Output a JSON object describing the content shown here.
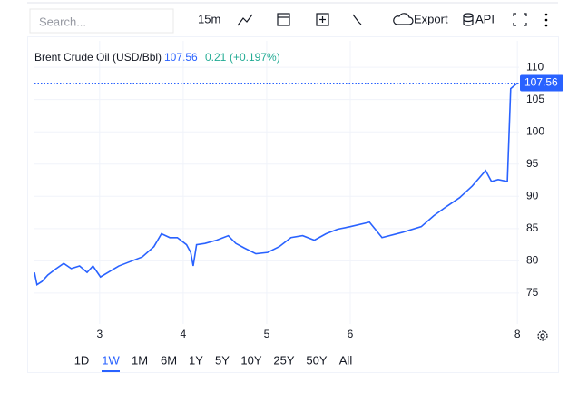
{
  "toolbar": {
    "search_placeholder": "Search...",
    "interval": "15m",
    "export": "Export",
    "api": "API"
  },
  "ranges": [
    "1D",
    "1W",
    "1M",
    "6M",
    "1Y",
    "5Y",
    "10Y",
    "25Y",
    "50Y",
    "All"
  ],
  "selected_range": 1,
  "chart_data": {
    "type": "line",
    "title": "Brent Crude Oil (USD/Bbl)",
    "change": 0.21,
    "change_percent": "(+0.197%)",
    "x": [
      2.22,
      2.25,
      2.31,
      2.38,
      2.47,
      2.57,
      2.66,
      2.76,
      2.85,
      2.92,
      3.01,
      3.1,
      3.23,
      3.37,
      3.51,
      3.65,
      3.74,
      3.84,
      3.93,
      4.04,
      4.09,
      4.12,
      4.16,
      4.26,
      4.4,
      4.54,
      4.63,
      4.73,
      4.87,
      5.01,
      5.15,
      5.29,
      5.43,
      5.57,
      5.71,
      5.85,
      6.0,
      6.23,
      6.38,
      6.62,
      6.85,
      7.0,
      7.15,
      7.31,
      7.46,
      7.62,
      7.69,
      7.77,
      7.88,
      7.92,
      8.0
    ],
    "series": [
      {
        "color": "#2962ff",
        "values": [
          78.2,
          76.3,
          76.8,
          77.8,
          78.7,
          79.6,
          78.8,
          79.2,
          78.2,
          79.2,
          77.5,
          78.2,
          79.2,
          79.9,
          80.6,
          82.2,
          84.2,
          83.6,
          83.6,
          82.5,
          81.3,
          79.2,
          82.5,
          82.7,
          83.2,
          83.9,
          82.7,
          82.0,
          81.1,
          81.3,
          82.2,
          83.6,
          83.9,
          83.2,
          84.2,
          84.9,
          85.3,
          86.0,
          83.6,
          84.4,
          85.3,
          87.0,
          88.4,
          89.8,
          91.6,
          94.0,
          92.3,
          92.6,
          92.3,
          106.7,
          107.56
        ]
      }
    ],
    "xlim": [
      2.22,
      8.02
    ],
    "xticks": [
      3,
      4,
      5,
      6,
      8
    ],
    "ylim": [
      70.2,
      114.1
    ],
    "yticks": [
      75,
      80,
      85,
      90,
      95,
      100,
      105,
      110
    ],
    "grid": true
  }
}
